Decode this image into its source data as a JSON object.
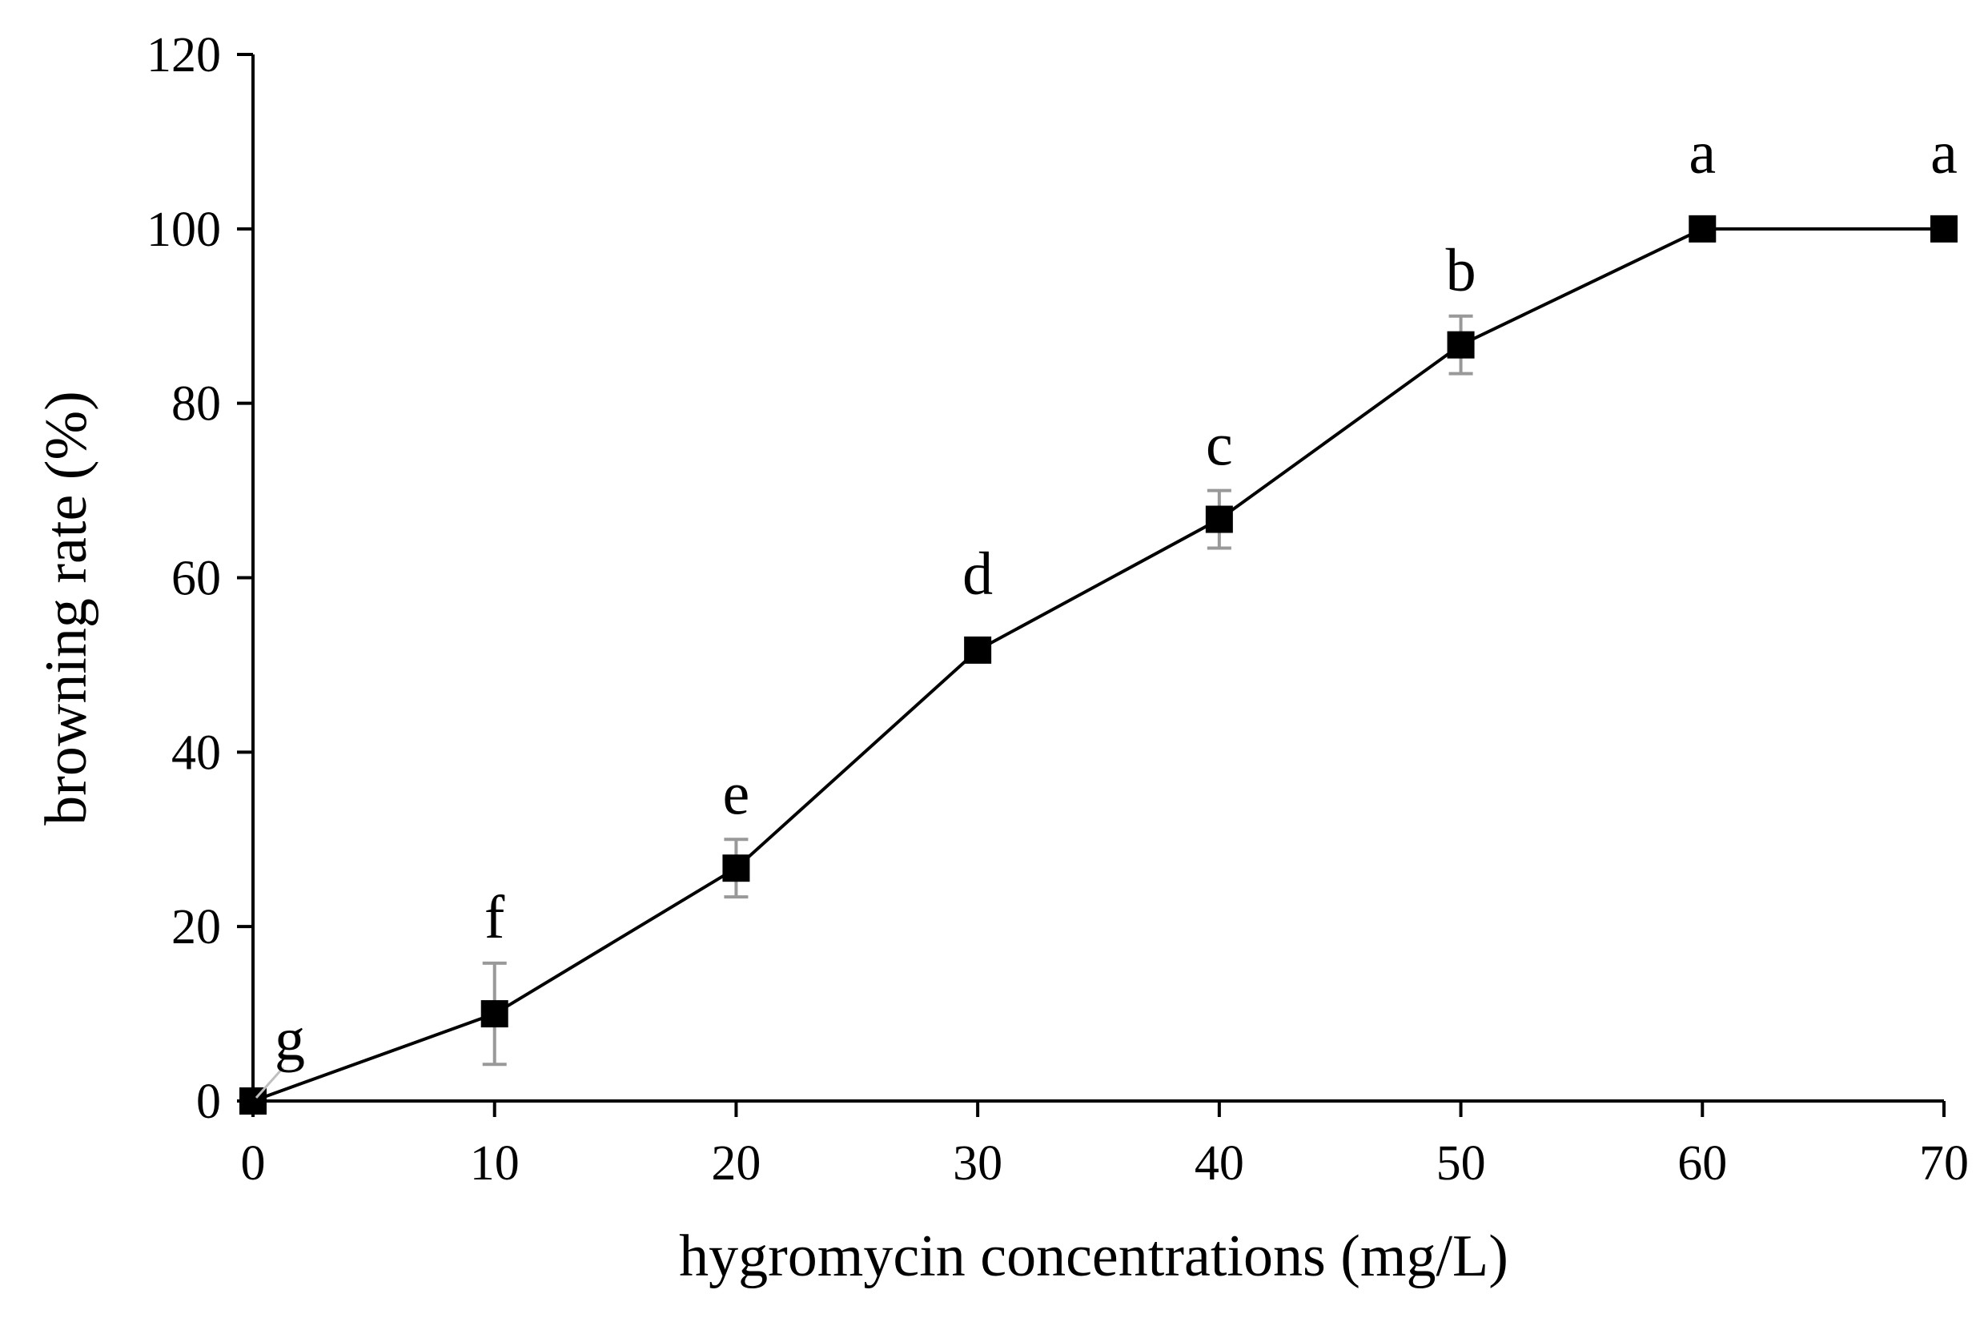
{
  "chart_data": {
    "type": "line",
    "title": "",
    "xlabel": "hygromycin concentrations (mg/L)",
    "ylabel": "browning rate (%)",
    "xlim": [
      0,
      70
    ],
    "ylim": [
      0,
      120
    ],
    "x_ticks": [
      0,
      10,
      20,
      30,
      40,
      50,
      60,
      70
    ],
    "y_ticks": [
      0,
      20,
      40,
      60,
      80,
      100,
      120
    ],
    "grid": false,
    "legend": null,
    "series": [
      {
        "name": "browning rate",
        "marker": "square",
        "color": "#000000",
        "errorbar_color": "#999999",
        "points": [
          {
            "x": 0,
            "y": 0,
            "err": 0,
            "label": "g"
          },
          {
            "x": 10,
            "y": 10,
            "err": 5.8,
            "label": "f"
          },
          {
            "x": 20,
            "y": 26.7,
            "err": 3.3,
            "label": "e"
          },
          {
            "x": 30,
            "y": 51.7,
            "err": 0,
            "label": "d"
          },
          {
            "x": 40,
            "y": 66.7,
            "err": 3.3,
            "label": "c"
          },
          {
            "x": 50,
            "y": 86.7,
            "err": 3.3,
            "label": "b"
          },
          {
            "x": 60,
            "y": 100,
            "err": 0,
            "label": "a"
          },
          {
            "x": 70,
            "y": 100,
            "err": 0,
            "label": "a"
          }
        ]
      }
    ]
  }
}
